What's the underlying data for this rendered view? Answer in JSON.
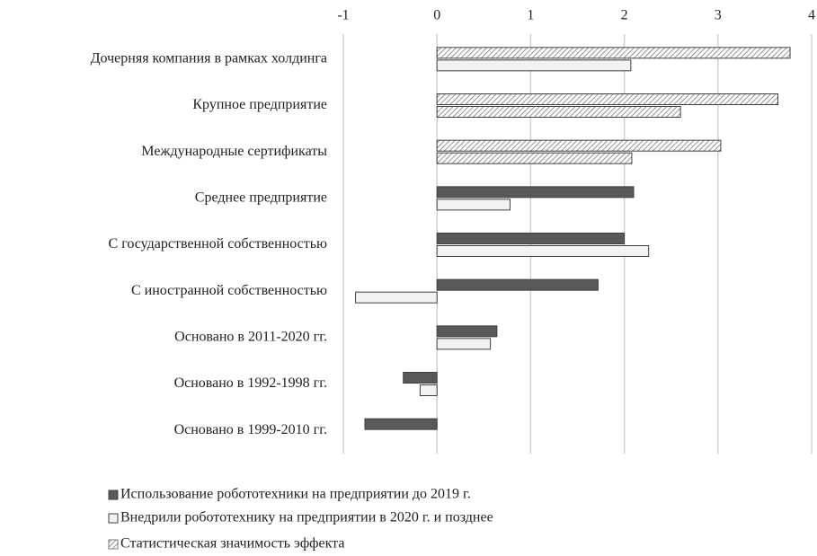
{
  "chart_data": {
    "type": "barh",
    "categories": [
      "Дочерняя компания в рамках холдинга",
      "Крупное предприятие",
      "Международные сертификаты",
      "Среднее предприятие",
      "С государственной собственностью",
      "С иностранной собственностью",
      "Основано в 2011-2020 гг.",
      "Основано в 1992-1998 гг.",
      "Основано в 1999-2010 гг."
    ],
    "series": [
      {
        "name": "Использование робототехники на предприятии до 2019 г.",
        "color": "#595959",
        "values": [
          3.77,
          3.64,
          3.03,
          2.1,
          2.0,
          1.72,
          0.64,
          -0.36,
          -0.77
        ],
        "hatched": [
          true,
          true,
          true,
          false,
          false,
          false,
          false,
          false,
          false
        ]
      },
      {
        "name": "Внедрили робототехнику на предприятии в 2020 г. и позднее",
        "color": "#f2f2f2",
        "values": [
          2.07,
          2.6,
          2.08,
          0.78,
          2.26,
          -0.87,
          0.57,
          -0.18,
          0
        ],
        "hatched": [
          false,
          true,
          true,
          false,
          false,
          false,
          false,
          false,
          false
        ]
      }
    ],
    "significance_label": "Статистическая значимость эффекта",
    "xlim": [
      -1,
      4
    ],
    "xticks": [
      -1,
      0,
      1,
      2,
      3,
      4
    ],
    "grid": true
  }
}
